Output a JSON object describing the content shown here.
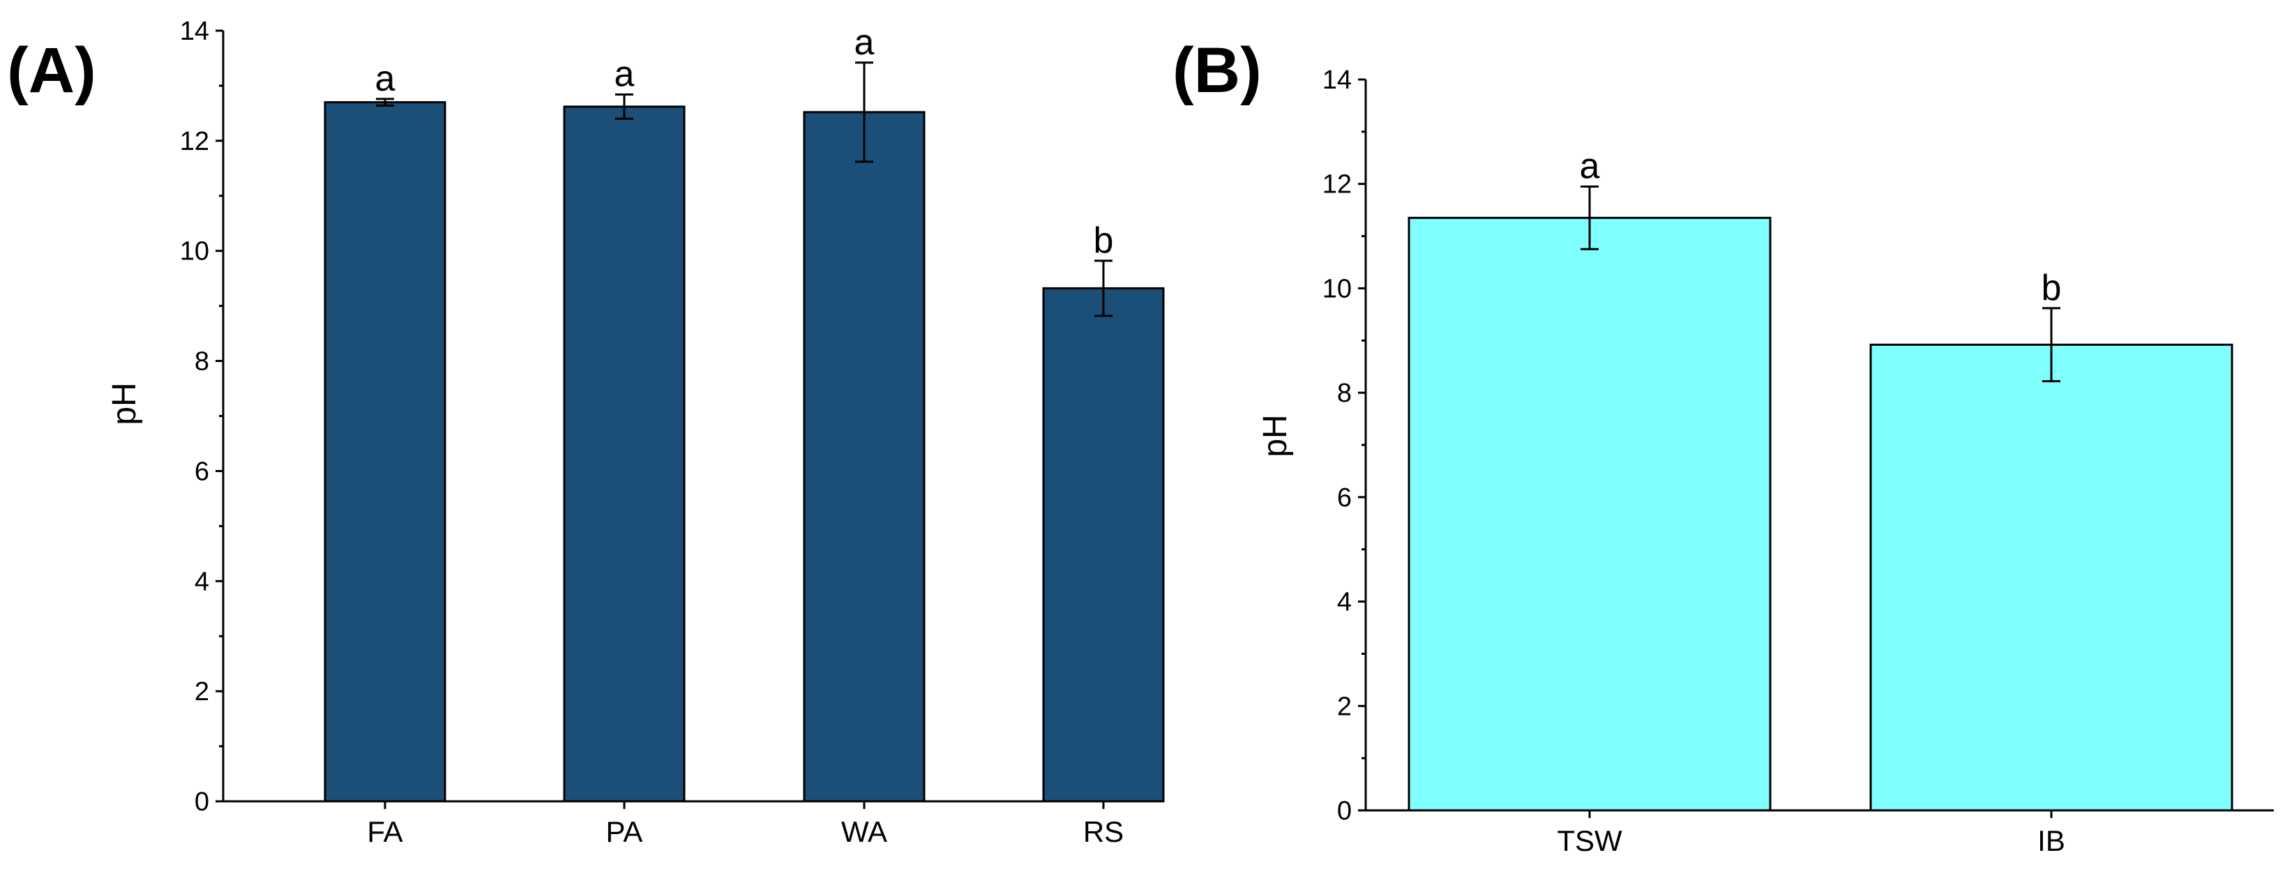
{
  "chart_data": [
    {
      "panel": "(A)",
      "type": "bar",
      "categories": [
        "FA",
        "PA",
        "WA",
        "RS"
      ],
      "values": [
        12.7,
        12.62,
        12.52,
        9.32
      ],
      "errors": [
        0.06,
        0.22,
        0.9,
        0.5
      ],
      "significance": [
        "a",
        "a",
        "a",
        "b"
      ],
      "ylabel": "pH",
      "xlabel": "",
      "ylim": [
        0,
        14
      ],
      "yticks": [
        0,
        2,
        4,
        6,
        8,
        10,
        12,
        14
      ],
      "bar_color": "#1b4f77"
    },
    {
      "panel": "(B)",
      "type": "bar",
      "categories": [
        "TSW",
        "IB"
      ],
      "values": [
        11.35,
        8.92
      ],
      "errors": [
        0.6,
        0.7
      ],
      "significance": [
        "a",
        "b"
      ],
      "ylabel": "pH",
      "xlabel": "",
      "ylim": [
        0,
        14
      ],
      "yticks": [
        0,
        2,
        4,
        6,
        8,
        10,
        12,
        14
      ],
      "bar_color": "#80ffff"
    }
  ]
}
